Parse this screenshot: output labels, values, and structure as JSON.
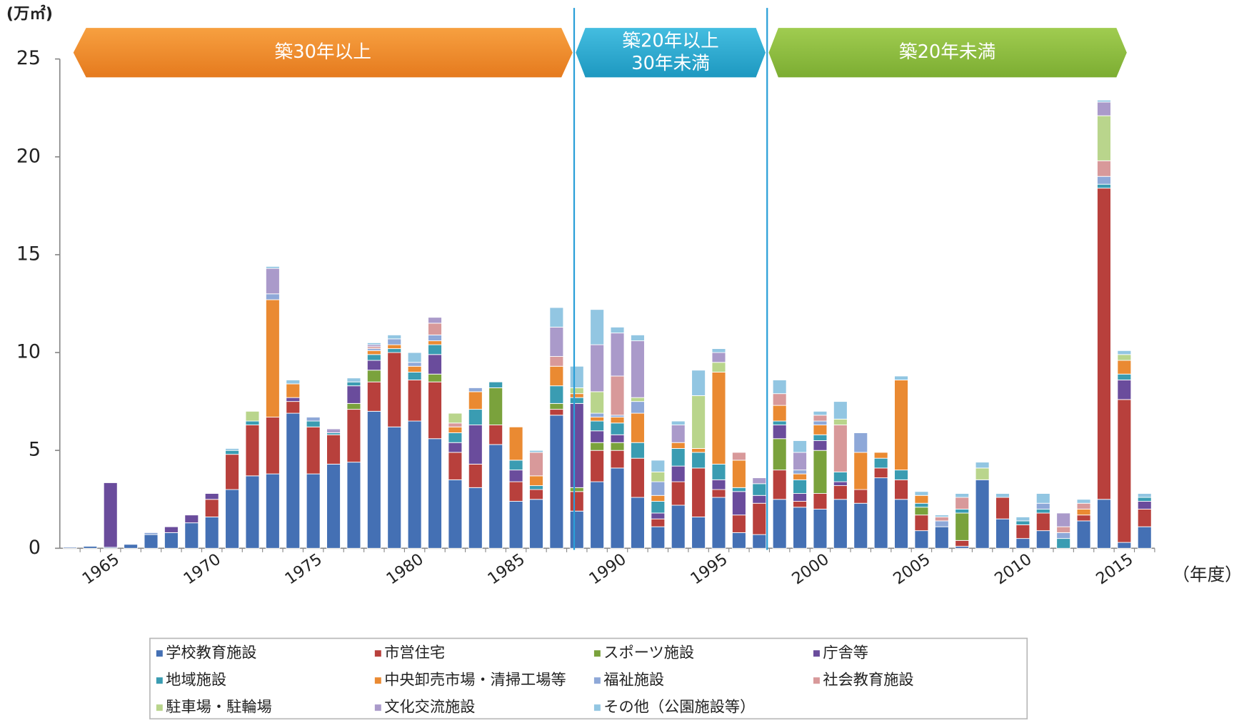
{
  "chart_data": {
    "type": "stacked_bar",
    "y_label": "(万㎡)",
    "x_label": "（年度）",
    "annotations": [
      [
        "築30年以上"
      ],
      [
        "築20年以上",
        "30年未満"
      ],
      [
        "築20年未満"
      ]
    ],
    "categories": [
      null,
      null,
      "1965",
      null,
      null,
      null,
      null,
      "1970",
      null,
      null,
      null,
      null,
      "1975",
      null,
      null,
      null,
      null,
      "1980",
      null,
      null,
      null,
      null,
      "1985",
      null,
      null,
      null,
      null,
      "1990",
      null,
      null,
      null,
      null,
      "1995",
      null,
      null,
      null,
      null,
      "2000",
      null,
      null,
      null,
      null,
      "2005",
      null,
      null,
      null,
      null,
      "2010",
      null,
      null,
      null,
      null,
      "2015",
      null
    ],
    "ylim": [
      0,
      25
    ],
    "yticks": [
      0,
      5,
      10,
      15,
      20,
      25
    ],
    "grid": false,
    "legend": "bottom",
    "series": [
      {
        "name": "学校教育施設",
        "color": "#4470b4",
        "values": [
          0.05,
          0.1,
          0.05,
          0.2,
          0.7,
          0.8,
          1.3,
          1.6,
          3.0,
          3.7,
          3.8,
          6.9,
          3.8,
          4.3,
          4.4,
          7.0,
          6.2,
          6.5,
          5.6,
          3.5,
          3.1,
          5.3,
          2.4,
          2.5,
          6.8,
          1.9,
          3.4,
          4.1,
          2.6,
          1.1,
          2.2,
          1.6,
          2.6,
          0.8,
          0.7,
          2.5,
          2.1,
          2.0,
          2.5,
          2.3,
          3.6,
          2.5,
          0.9,
          1.1,
          0.1,
          3.5,
          1.5,
          0.5,
          0.9,
          0,
          1.4,
          2.5,
          0.3,
          1.1
        ]
      },
      {
        "name": "市営住宅",
        "color": "#b8403c",
        "values": [
          0,
          0,
          0,
          0,
          0,
          0,
          0,
          0.9,
          1.8,
          2.6,
          2.9,
          0.6,
          2.4,
          1.5,
          2.7,
          1.5,
          3.8,
          2.1,
          2.9,
          1.4,
          1.2,
          1.0,
          1.0,
          0.5,
          0.3,
          1.0,
          1.6,
          0.9,
          2.0,
          0.4,
          1.2,
          2.5,
          0.4,
          0.9,
          1.6,
          1.5,
          0.3,
          0.8,
          0.7,
          0.7,
          0.5,
          1.0,
          0.8,
          0,
          0.3,
          0,
          1.1,
          0.7,
          0.9,
          0,
          0.3,
          15.9,
          7.3,
          0.9
        ]
      },
      {
        "name": "スポーツ施設",
        "color": "#7aa23c",
        "values": [
          0,
          0,
          0,
          0,
          0,
          0,
          0,
          0,
          0,
          0,
          0,
          0,
          0,
          0,
          0.3,
          0.6,
          0,
          0,
          0.4,
          0,
          0,
          1.9,
          0,
          0,
          0.3,
          0.2,
          0.4,
          0.4,
          0,
          0,
          0,
          0,
          0,
          0,
          0,
          1.6,
          0,
          2.2,
          0,
          0,
          0,
          0,
          0.4,
          0,
          1.4,
          0,
          0,
          0,
          0,
          0,
          0,
          0,
          0,
          0
        ]
      },
      {
        "name": "庁舎等",
        "color": "#6a4c9c",
        "values": [
          0,
          0,
          3.3,
          0,
          0,
          0.3,
          0.4,
          0.3,
          0,
          0,
          0,
          0.2,
          0,
          0,
          0.9,
          0.5,
          0,
          0,
          1.0,
          0.5,
          2.0,
          0,
          0.6,
          0,
          0,
          4.3,
          0.6,
          0.4,
          0,
          0.3,
          0.8,
          0,
          0.5,
          1.2,
          0.4,
          0.7,
          0.4,
          0.5,
          0.2,
          0,
          0,
          0,
          0,
          0,
          0,
          0,
          0,
          0,
          0,
          0,
          0,
          0,
          1.0,
          0.4
        ]
      },
      {
        "name": "地域施設",
        "color": "#3a9cb2",
        "values": [
          0,
          0,
          0,
          0,
          0,
          0,
          0,
          0,
          0.2,
          0.2,
          0,
          0,
          0.3,
          0.1,
          0.2,
          0.3,
          0.2,
          0.4,
          0.5,
          0.5,
          0.8,
          0.3,
          0.5,
          0.2,
          0.9,
          0.3,
          0.5,
          0.6,
          0.8,
          0.6,
          0.9,
          0.8,
          0.8,
          0.2,
          0.6,
          0.2,
          0.7,
          0.3,
          0.5,
          0,
          0.5,
          0.5,
          0.2,
          0,
          0.2,
          0,
          0,
          0.2,
          0.2,
          0.5,
          0,
          0.2,
          0.3,
          0.2
        ]
      },
      {
        "name": "中央卸売市場・清掃工場等",
        "color": "#ea8a32",
        "values": [
          0,
          0,
          0,
          0,
          0,
          0,
          0,
          0,
          0,
          0,
          6.0,
          0.7,
          0,
          0,
          0,
          0.2,
          0.2,
          0.3,
          0.2,
          0.3,
          0.9,
          0,
          1.7,
          0.5,
          1.0,
          0.2,
          0.2,
          0.3,
          1.5,
          0.3,
          0.3,
          0.2,
          4.7,
          1.4,
          0,
          0.8,
          0.3,
          0.5,
          0,
          1.9,
          0.3,
          4.6,
          0.4,
          0,
          0,
          0,
          0,
          0,
          0,
          0,
          0.3,
          0,
          0.7,
          0
        ]
      },
      {
        "name": "福祉施設",
        "color": "#8ea8d8",
        "values": [
          0,
          0,
          0,
          0,
          0.1,
          0,
          0,
          0,
          0,
          0,
          0.3,
          0,
          0.2,
          0,
          0,
          0.1,
          0.3,
          0.2,
          0.3,
          0,
          0.2,
          0,
          0,
          0,
          0,
          0,
          0.2,
          0.1,
          0.6,
          0.7,
          0,
          0,
          0,
          0,
          0,
          0,
          0.2,
          0.2,
          0,
          1.0,
          0,
          0,
          0,
          0.3,
          0,
          0,
          0,
          0,
          0.3,
          0.3,
          0,
          0.4,
          0,
          0
        ]
      },
      {
        "name": "社会教育施設",
        "color": "#d8999a",
        "values": [
          0,
          0,
          0,
          0,
          0,
          0,
          0,
          0,
          0,
          0,
          0,
          0,
          0,
          0,
          0,
          0.1,
          0,
          0,
          0.6,
          0.2,
          0,
          0,
          0,
          1.2,
          0.5,
          0,
          0,
          2.0,
          0,
          0,
          0,
          0,
          0,
          0.4,
          0,
          0.6,
          0,
          0.3,
          2.4,
          0,
          0,
          0,
          0,
          0.2,
          0.6,
          0,
          0,
          0,
          0,
          0.3,
          0.3,
          0.8,
          0,
          0
        ]
      },
      {
        "name": "駐車場・駐輪場",
        "color": "#b9d58c",
        "values": [
          0,
          0,
          0,
          0,
          0,
          0,
          0,
          0,
          0,
          0.5,
          0,
          0,
          0,
          0,
          0,
          0,
          0,
          0,
          0,
          0.5,
          0,
          0,
          0,
          0,
          0,
          0.3,
          1.1,
          0,
          0.2,
          0.5,
          0,
          2.7,
          0.5,
          0,
          0,
          0,
          0,
          0,
          0.3,
          0,
          0,
          0,
          0,
          0,
          0,
          0.6,
          0,
          0,
          0,
          0,
          0,
          2.3,
          0.3,
          0
        ]
      },
      {
        "name": "文化交流施設",
        "color": "#aa9aca",
        "values": [
          0,
          0,
          0,
          0,
          0,
          0,
          0,
          0,
          0,
          0,
          1.3,
          0,
          0,
          0.2,
          0,
          0.1,
          0,
          0,
          0.3,
          0,
          0,
          0,
          0,
          0,
          1.5,
          0,
          2.4,
          2.2,
          2.9,
          0,
          0.9,
          0,
          0.5,
          0,
          0.3,
          0,
          0.9,
          0,
          0,
          0,
          0,
          0,
          0,
          0,
          0,
          0,
          0,
          0,
          0,
          0.7,
          0,
          0.7,
          0,
          0
        ]
      },
      {
        "name": "その他（公園施設等）",
        "color": "#92c6e2",
        "values": [
          0,
          0,
          0,
          0,
          0,
          0,
          0,
          0,
          0.1,
          0,
          0.1,
          0.2,
          0,
          0,
          0.2,
          0.1,
          0.2,
          0.5,
          0,
          0,
          0,
          0,
          0,
          0.1,
          1.0,
          1.1,
          1.8,
          0.3,
          0.3,
          0.6,
          0.2,
          1.3,
          0.2,
          0,
          0,
          0.7,
          0.6,
          0.2,
          0.9,
          0,
          0,
          0.2,
          0.2,
          0.1,
          0.2,
          0.3,
          0.2,
          0.2,
          0.5,
          0,
          0.2,
          0.1,
          0.2,
          0.2
        ]
      }
    ]
  }
}
